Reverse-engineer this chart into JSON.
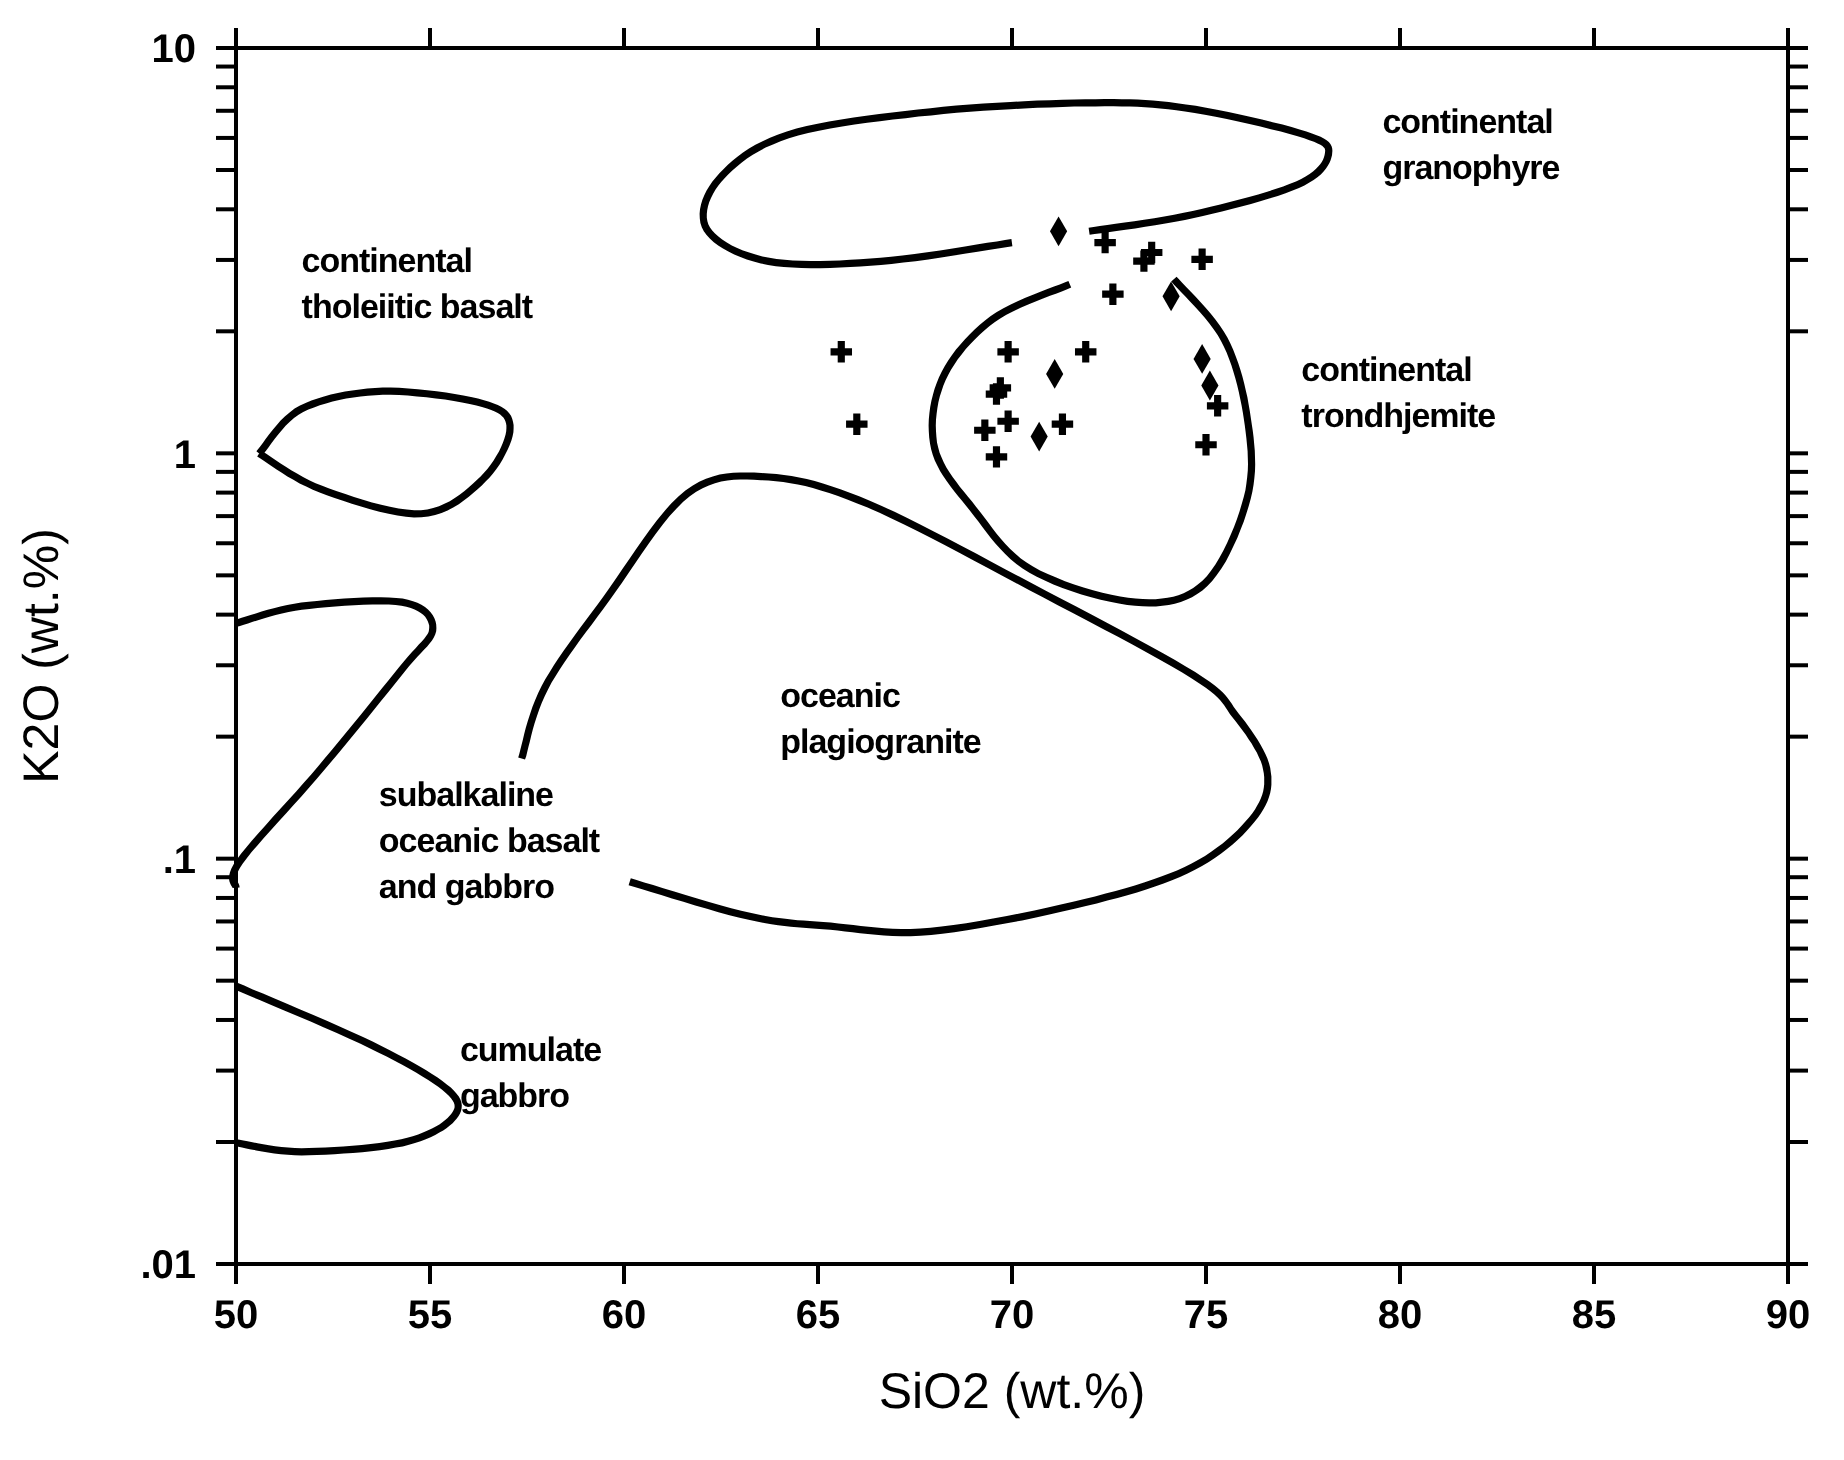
{
  "chart_data": {
    "type": "scatter",
    "xlabel": "SiO2 (wt.%)",
    "ylabel": "K2O (wt.%)",
    "log": "y",
    "xlim": [
      50,
      90
    ],
    "ylim": [
      0.01,
      10
    ],
    "xticks": [
      50,
      55,
      60,
      65,
      70,
      75,
      80,
      85,
      90
    ],
    "yticks": [
      {
        "value": 0.01,
        "label": ".01"
      },
      {
        "value": 0.02,
        "label": null
      },
      {
        "value": 0.03,
        "label": null
      },
      {
        "value": 0.04,
        "label": null
      },
      {
        "value": 0.05,
        "label": null
      },
      {
        "value": 0.06,
        "label": null
      },
      {
        "value": 0.07,
        "label": null
      },
      {
        "value": 0.08,
        "label": null
      },
      {
        "value": 0.09,
        "label": null
      },
      {
        "value": 0.1,
        "label": ".1"
      },
      {
        "value": 0.2,
        "label": null
      },
      {
        "value": 0.3,
        "label": null
      },
      {
        "value": 0.4,
        "label": null
      },
      {
        "value": 0.5,
        "label": null
      },
      {
        "value": 0.6,
        "label": null
      },
      {
        "value": 0.7,
        "label": null
      },
      {
        "value": 0.8,
        "label": null
      },
      {
        "value": 0.9,
        "label": null
      },
      1,
      {
        "value": 2,
        "label": null
      },
      {
        "value": 3,
        "label": null
      },
      {
        "value": 4,
        "label": null
      },
      {
        "value": 5,
        "label": null
      },
      {
        "value": 6,
        "label": null
      },
      {
        "value": 7,
        "label": null
      },
      {
        "value": 8,
        "label": null
      },
      {
        "value": 9,
        "label": null
      },
      10
    ],
    "series": [
      {
        "marker": "cross",
        "color": "#000000",
        "x": [
          72.4,
          73.6,
          73.4,
          74.9,
          72.6,
          65.6,
          69.9,
          71.9,
          69.7,
          69.6,
          66.0,
          69.3,
          69.9,
          71.3,
          69.6,
          75.3,
          75.0
        ],
        "values": [
          3.31,
          3.13,
          2.98,
          3.01,
          2.47,
          1.78,
          1.78,
          1.78,
          1.45,
          1.4,
          1.18,
          1.14,
          1.2,
          1.18,
          0.98,
          1.31,
          1.05
        ]
      },
      {
        "marker": "diamond",
        "color": "#000000",
        "x": [
          71.2,
          74.1,
          71.1,
          74.9,
          75.1,
          70.7
        ],
        "values": [
          3.53,
          2.44,
          1.57,
          1.71,
          1.47,
          1.1
        ]
      }
    ],
    "annotations": [
      "continental\ntholeiitic basalt",
      "continental\ngranophyre",
      "continental\ntrondhjemite",
      "oceanic\nplagiogranite",
      "subalkaline\noceanic basalt\nand gabbro",
      "cumulate\ngabbro"
    ]
  }
}
